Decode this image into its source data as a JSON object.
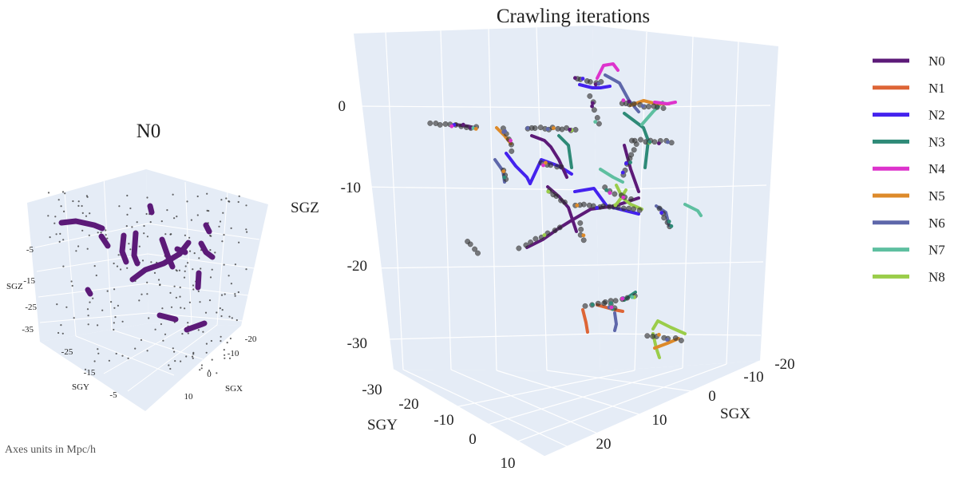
{
  "footnote": "Axes units in Mpc/h",
  "colors": {
    "pane": "#e5ecf6",
    "grid": "#ffffff",
    "N0": "#5c1a78",
    "N1": "#dd6536",
    "N2": "#4422ee",
    "N3": "#2e8a77",
    "N4": "#dd33cc",
    "N5": "#dd8a2a",
    "N6": "#5e67aa",
    "N7": "#5ebfa0",
    "N8": "#9acd4a"
  },
  "chart_data": [
    {
      "type": "scatter",
      "title": "N0",
      "xlabel": "SGX",
      "ylabel": "SGY",
      "zlabel": "SGZ",
      "xticks": [
        "-20",
        "-10",
        "0",
        "10"
      ],
      "yticks": [
        "-25",
        "-15",
        "-5"
      ],
      "zticks": [
        "-5",
        "-15",
        "-25",
        "-35"
      ],
      "series": [
        {
          "name": "N0"
        }
      ]
    },
    {
      "type": "scatter",
      "title": "Crawling iterations",
      "xlabel": "SGX",
      "ylabel": "SGY",
      "zlabel": "SGZ",
      "xticks": [
        "-20",
        "-10",
        "0",
        "10",
        "20"
      ],
      "yticks": [
        "-30",
        "-20",
        "-10",
        "0",
        "10"
      ],
      "zticks": [
        "0",
        "-10",
        "-20",
        "-30"
      ],
      "legend": {
        "position": "right",
        "items": [
          "N0",
          "N1",
          "N2",
          "N3",
          "N4",
          "N5",
          "N6",
          "N7",
          "N8"
        ]
      }
    }
  ]
}
